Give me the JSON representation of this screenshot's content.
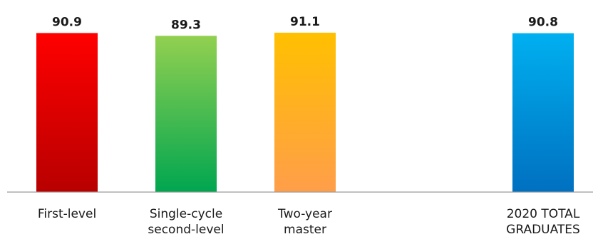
{
  "chart_data": {
    "type": "bar",
    "categories": [
      [
        "First-level"
      ],
      [
        "Single-cycle",
        "second-level"
      ],
      [
        "Two-year",
        "master"
      ],
      [
        "2020 TOTAL",
        "GRADUATES"
      ]
    ],
    "values": [
      90.9,
      89.3,
      91.1,
      90.8
    ],
    "value_labels": [
      "90.9",
      "89.3",
      "91.1",
      "90.8"
    ],
    "title": "",
    "xlabel": "",
    "ylabel": "",
    "grid": false,
    "legend": "none",
    "colors": [
      [
        "#ff0000",
        "#b80000"
      ],
      [
        "#92d050",
        "#00a650"
      ],
      [
        "#ffc000",
        "#ff9e4a"
      ],
      [
        "#00b0f0",
        "#0070c0"
      ]
    ]
  }
}
